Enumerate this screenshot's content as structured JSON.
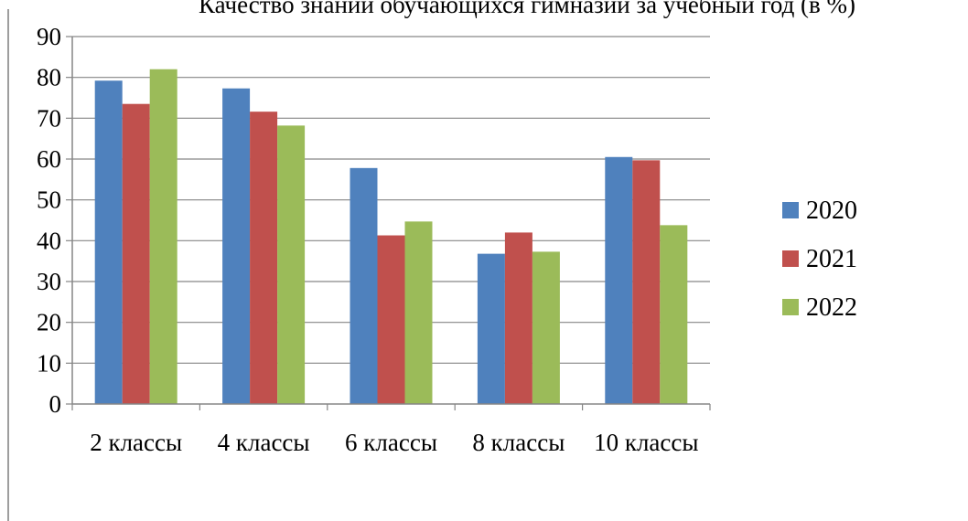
{
  "chart_data": {
    "type": "bar",
    "title": "Качество знаний обучающихся гимназии за учебный год (в %)",
    "xlabel": "",
    "ylabel": "",
    "ylim": [
      0,
      90
    ],
    "yticks": [
      0,
      10,
      20,
      30,
      40,
      50,
      60,
      70,
      80,
      90
    ],
    "grid": true,
    "legend_position": "right",
    "categories": [
      "2 классы",
      "4 классы",
      "6 классы",
      "8 классы",
      "10 классы"
    ],
    "series": [
      {
        "name": "2020",
        "color": "#4f81bd",
        "values": [
          79.2,
          77.3,
          57.8,
          36.8,
          60.5
        ]
      },
      {
        "name": "2021",
        "color": "#c0504d",
        "values": [
          73.5,
          71.6,
          41.3,
          42,
          59.7
        ]
      },
      {
        "name": "2022",
        "color": "#9bbb59",
        "values": [
          82,
          68.2,
          44.7,
          37.3,
          43.8
        ]
      }
    ]
  }
}
